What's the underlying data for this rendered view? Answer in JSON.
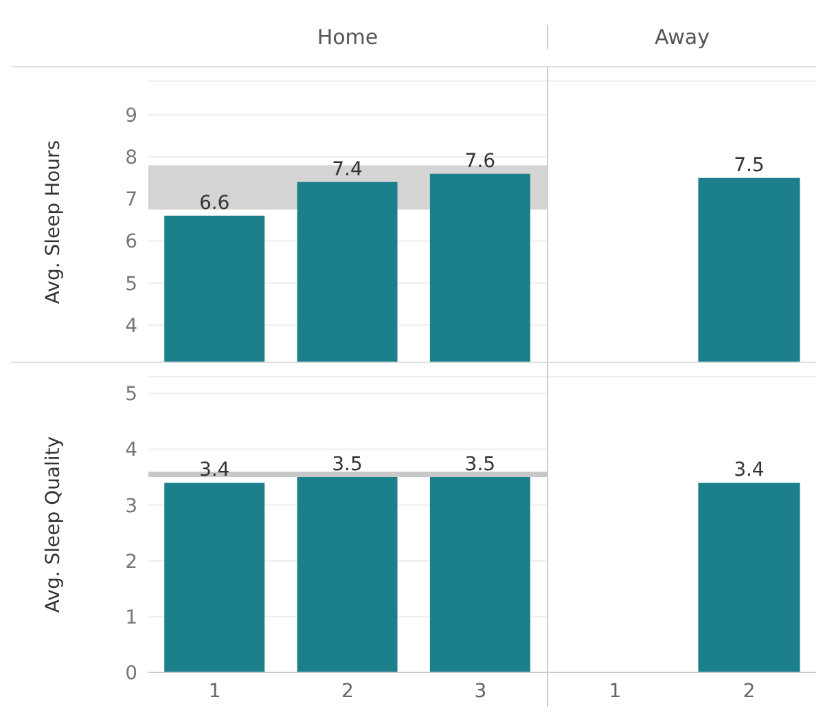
{
  "chart_data": [
    {
      "type": "bar",
      "title": "Home",
      "ylabel": "Avg. Sleep Hours",
      "categories": [
        "1",
        "2",
        "3"
      ],
      "values": [
        6.6,
        7.4,
        7.6
      ],
      "color": "#1b7f8c",
      "ylim": [
        3.1,
        9.8
      ],
      "yticks": [
        4,
        5,
        6,
        7,
        8,
        9
      ],
      "grid": "y",
      "data_labels": true,
      "tick_labels": "y",
      "bands": [
        {
          "axis": "y",
          "from": 6.75,
          "to": 7.8,
          "color": "#d4d4d4"
        }
      ]
    },
    {
      "type": "bar",
      "title": "Away",
      "categories": [
        "1",
        "2"
      ],
      "values": [
        null,
        7.5
      ],
      "color": "#1b7f8c",
      "ylim": [
        3.1,
        9.8
      ],
      "yticks": [
        4,
        5,
        6,
        7,
        8,
        9
      ],
      "grid": "y",
      "data_labels": true,
      "tick_labels": false
    },
    {
      "type": "bar",
      "ylabel": "Avg. Sleep Quality",
      "categories": [
        "1",
        "2",
        "3"
      ],
      "values": [
        3.4,
        3.5,
        3.5
      ],
      "color": "#1b7f8c",
      "ylim": [
        0,
        5.3
      ],
      "yticks": [
        0,
        1,
        2,
        3,
        4,
        5
      ],
      "grid": "y",
      "data_labels": true,
      "ref_lines": [
        {
          "axis": "y",
          "value": 3.55,
          "color": "#c8c8c8"
        }
      ]
    },
    {
      "type": "bar",
      "categories": [
        "1",
        "2"
      ],
      "values": [
        null,
        3.4
      ],
      "color": "#1b7f8c",
      "ylim": [
        0,
        5.3
      ],
      "yticks": [
        0,
        1,
        2,
        3,
        4,
        5
      ],
      "grid": "y",
      "data_labels": true,
      "tick_labels": "x"
    }
  ]
}
